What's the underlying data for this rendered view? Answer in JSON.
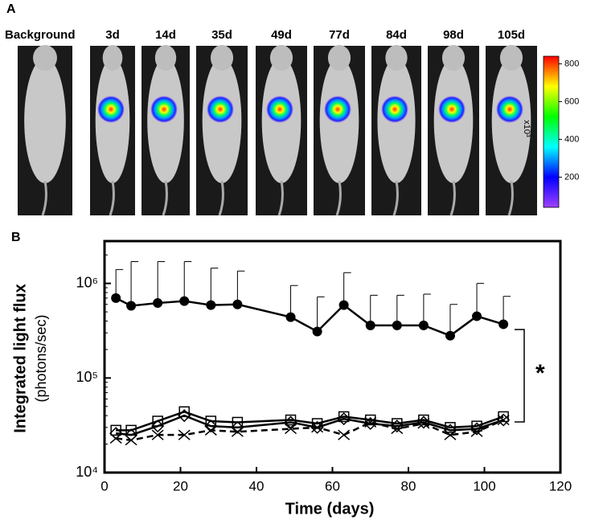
{
  "panel_a": {
    "label": "A",
    "images": [
      "Background",
      "3d",
      "14d",
      "35d",
      "49d",
      "77d",
      "84d",
      "98d",
      "105d"
    ],
    "colorbar": {
      "ticks": [
        800,
        600,
        400,
        200
      ],
      "label": "x10³",
      "lim": [
        40,
        840
      ]
    }
  },
  "chart_data": {
    "type": "line",
    "panel_label": "B",
    "xlabel": "Time (days)",
    "ylabel": "Integrated light flux",
    "ylabel_sub": "(photons/sec)",
    "x": [
      3,
      7,
      14,
      21,
      28,
      35,
      49,
      56,
      63,
      70,
      77,
      84,
      91,
      98,
      105
    ],
    "xlim": [
      0,
      120
    ],
    "xticks": [
      0,
      20,
      40,
      60,
      80,
      100,
      120
    ],
    "ylim": [
      10000,
      2800000
    ],
    "log_y": true,
    "yticks": [
      {
        "value": 10000,
        "label": "10⁴"
      },
      {
        "value": 100000,
        "label": "10⁵"
      },
      {
        "value": 1000000,
        "label": "10⁶"
      }
    ],
    "annotation": "*",
    "series": [
      {
        "color": "#000000",
        "marker": "filled-circle",
        "dash": false,
        "values": [
          700000,
          580000,
          620000,
          650000,
          590000,
          600000,
          440000,
          310000,
          590000,
          360000,
          360000,
          360000,
          280000,
          450000,
          370000
        ],
        "errors": [
          700000,
          1120000,
          1080000,
          1050000,
          860000,
          750000,
          510000,
          410000,
          710000,
          390000,
          390000,
          410000,
          320000,
          550000,
          360000
        ]
      },
      {
        "color": "#000000",
        "marker": "square",
        "dash": false,
        "values": [
          28000,
          28000,
          35000,
          44000,
          35000,
          34000,
          36000,
          33000,
          39000,
          36000,
          33000,
          36000,
          30000,
          31000,
          39000
        ]
      },
      {
        "color": "#000000",
        "marker": "diamond",
        "dash": false,
        "values": [
          26000,
          25000,
          31000,
          40000,
          31000,
          30000,
          34000,
          30000,
          37000,
          33000,
          31000,
          34000,
          28000,
          29000,
          36000
        ]
      },
      {
        "color": "#000000",
        "marker": "cross",
        "dash": true,
        "values": [
          23000,
          22000,
          25000,
          25000,
          28000,
          27000,
          29000,
          30000,
          25000,
          34000,
          29000,
          33000,
          25000,
          27000,
          36000
        ]
      }
    ]
  }
}
